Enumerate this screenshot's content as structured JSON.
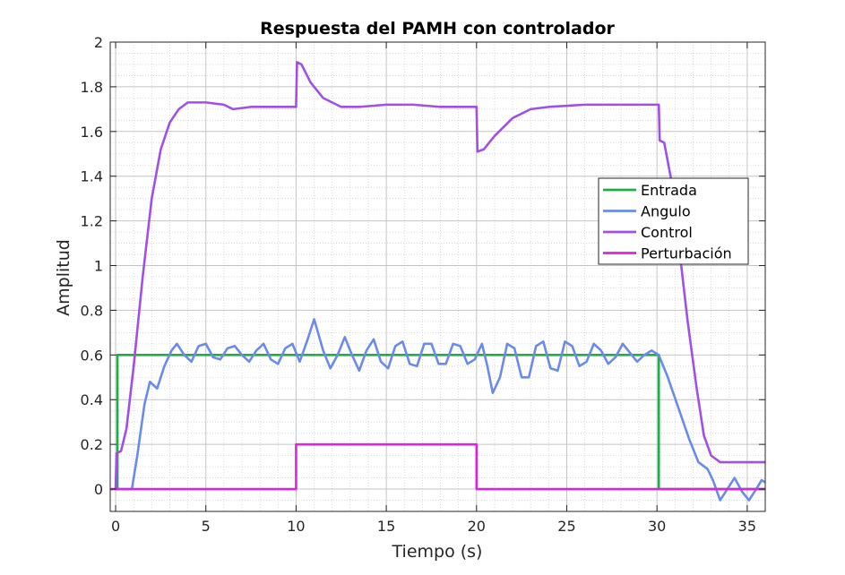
{
  "chart_data": {
    "type": "line",
    "title": "Respuesta del PAMH con controlador",
    "xlabel": "Tiempo (s)",
    "ylabel": "Amplitud",
    "xlim": [
      -0.3,
      36
    ],
    "ylim": [
      -0.1,
      2
    ],
    "xticks": [
      "0",
      "5",
      "10",
      "15",
      "20",
      "25",
      "30",
      "35"
    ],
    "yticks": [
      "0",
      "0.2",
      "0.4",
      "0.6",
      "0.8",
      "1",
      "1.2",
      "1.4",
      "1.6",
      "1.8",
      "2"
    ],
    "grid": "on (major and minor)",
    "legend_position": "right",
    "series": [
      {
        "name": "Entrada",
        "color": "#1fad45",
        "points": [
          [
            0,
            0
          ],
          [
            0.1,
            0
          ],
          [
            0.1,
            0.6
          ],
          [
            30.1,
            0.6
          ],
          [
            30.1,
            0
          ],
          [
            36,
            0
          ]
        ]
      },
      {
        "name": "Angulo",
        "color": "#6a8bec",
        "points": [
          [
            0,
            0
          ],
          [
            0.9,
            0
          ],
          [
            1.2,
            0.15
          ],
          [
            1.6,
            0.38
          ],
          [
            1.9,
            0.48
          ],
          [
            2.3,
            0.45
          ],
          [
            2.7,
            0.55
          ],
          [
            3.1,
            0.62
          ],
          [
            3.4,
            0.65
          ],
          [
            3.8,
            0.6
          ],
          [
            4.2,
            0.57
          ],
          [
            4.6,
            0.64
          ],
          [
            5.0,
            0.65
          ],
          [
            5.4,
            0.59
          ],
          [
            5.8,
            0.58
          ],
          [
            6.2,
            0.63
          ],
          [
            6.6,
            0.64
          ],
          [
            7.0,
            0.6
          ],
          [
            7.4,
            0.57
          ],
          [
            7.8,
            0.62
          ],
          [
            8.2,
            0.65
          ],
          [
            8.6,
            0.58
          ],
          [
            9.0,
            0.56
          ],
          [
            9.4,
            0.63
          ],
          [
            9.8,
            0.65
          ],
          [
            10.2,
            0.57
          ],
          [
            10.6,
            0.66
          ],
          [
            11.0,
            0.76
          ],
          [
            11.5,
            0.62
          ],
          [
            11.9,
            0.54
          ],
          [
            12.3,
            0.6
          ],
          [
            12.7,
            0.68
          ],
          [
            13.1,
            0.6
          ],
          [
            13.5,
            0.53
          ],
          [
            13.9,
            0.62
          ],
          [
            14.3,
            0.67
          ],
          [
            14.7,
            0.57
          ],
          [
            15.1,
            0.54
          ],
          [
            15.5,
            0.64
          ],
          [
            15.9,
            0.66
          ],
          [
            16.3,
            0.56
          ],
          [
            16.7,
            0.55
          ],
          [
            17.1,
            0.65
          ],
          [
            17.5,
            0.65
          ],
          [
            17.9,
            0.56
          ],
          [
            18.3,
            0.56
          ],
          [
            18.7,
            0.65
          ],
          [
            19.1,
            0.64
          ],
          [
            19.5,
            0.56
          ],
          [
            19.9,
            0.58
          ],
          [
            20.3,
            0.65
          ],
          [
            20.6,
            0.55
          ],
          [
            20.9,
            0.43
          ],
          [
            21.3,
            0.5
          ],
          [
            21.7,
            0.65
          ],
          [
            22.1,
            0.63
          ],
          [
            22.5,
            0.5
          ],
          [
            22.9,
            0.5
          ],
          [
            23.3,
            0.64
          ],
          [
            23.7,
            0.66
          ],
          [
            24.1,
            0.54
          ],
          [
            24.5,
            0.53
          ],
          [
            24.9,
            0.66
          ],
          [
            25.3,
            0.64
          ],
          [
            25.7,
            0.55
          ],
          [
            26.1,
            0.57
          ],
          [
            26.5,
            0.65
          ],
          [
            26.9,
            0.62
          ],
          [
            27.3,
            0.56
          ],
          [
            27.7,
            0.59
          ],
          [
            28.1,
            0.65
          ],
          [
            28.5,
            0.61
          ],
          [
            28.9,
            0.57
          ],
          [
            29.3,
            0.6
          ],
          [
            29.7,
            0.62
          ],
          [
            30.1,
            0.6
          ],
          [
            30.6,
            0.5
          ],
          [
            31.2,
            0.36
          ],
          [
            31.8,
            0.22
          ],
          [
            32.3,
            0.12
          ],
          [
            32.8,
            0.09
          ],
          [
            33.1,
            0.04
          ],
          [
            33.5,
            -0.05
          ],
          [
            33.9,
            0.0
          ],
          [
            34.3,
            0.05
          ],
          [
            34.7,
            -0.01
          ],
          [
            35.1,
            -0.05
          ],
          [
            35.5,
            0.0
          ],
          [
            35.8,
            0.04
          ],
          [
            36.0,
            0.03
          ]
        ]
      },
      {
        "name": "Control",
        "color": "#a050e6",
        "points": [
          [
            0,
            0.0
          ],
          [
            0.05,
            0.16
          ],
          [
            0.3,
            0.17
          ],
          [
            0.6,
            0.27
          ],
          [
            1.0,
            0.55
          ],
          [
            1.5,
            0.95
          ],
          [
            2.0,
            1.3
          ],
          [
            2.5,
            1.52
          ],
          [
            3.0,
            1.64
          ],
          [
            3.5,
            1.7
          ],
          [
            4.0,
            1.73
          ],
          [
            5.0,
            1.73
          ],
          [
            6.0,
            1.72
          ],
          [
            6.5,
            1.7
          ],
          [
            7.5,
            1.71
          ],
          [
            8.5,
            1.71
          ],
          [
            9.5,
            1.71
          ],
          [
            10.0,
            1.71
          ],
          [
            10.05,
            1.91
          ],
          [
            10.3,
            1.9
          ],
          [
            10.8,
            1.82
          ],
          [
            11.5,
            1.75
          ],
          [
            12.5,
            1.71
          ],
          [
            13.5,
            1.71
          ],
          [
            15.0,
            1.72
          ],
          [
            16.5,
            1.72
          ],
          [
            18.0,
            1.71
          ],
          [
            19.5,
            1.71
          ],
          [
            20.0,
            1.71
          ],
          [
            20.05,
            1.51
          ],
          [
            20.4,
            1.52
          ],
          [
            21.0,
            1.58
          ],
          [
            21.5,
            1.62
          ],
          [
            22.0,
            1.66
          ],
          [
            23.0,
            1.7
          ],
          [
            24.0,
            1.71
          ],
          [
            26.0,
            1.72
          ],
          [
            28.0,
            1.72
          ],
          [
            29.5,
            1.72
          ],
          [
            30.1,
            1.72
          ],
          [
            30.15,
            1.56
          ],
          [
            30.4,
            1.55
          ],
          [
            30.8,
            1.38
          ],
          [
            31.2,
            1.1
          ],
          [
            31.7,
            0.75
          ],
          [
            32.2,
            0.45
          ],
          [
            32.6,
            0.24
          ],
          [
            33.0,
            0.15
          ],
          [
            33.5,
            0.12
          ],
          [
            34.5,
            0.12
          ],
          [
            35.0,
            0.12
          ],
          [
            35.5,
            0.12
          ],
          [
            36.0,
            0.12
          ]
        ]
      },
      {
        "name": "Perturbación",
        "color": "#dd22e0",
        "points": [
          [
            -0.3,
            0
          ],
          [
            10.0,
            0
          ],
          [
            10.0,
            0.2
          ],
          [
            20.0,
            0.2
          ],
          [
            20.0,
            0
          ],
          [
            36,
            0
          ]
        ]
      }
    ]
  }
}
